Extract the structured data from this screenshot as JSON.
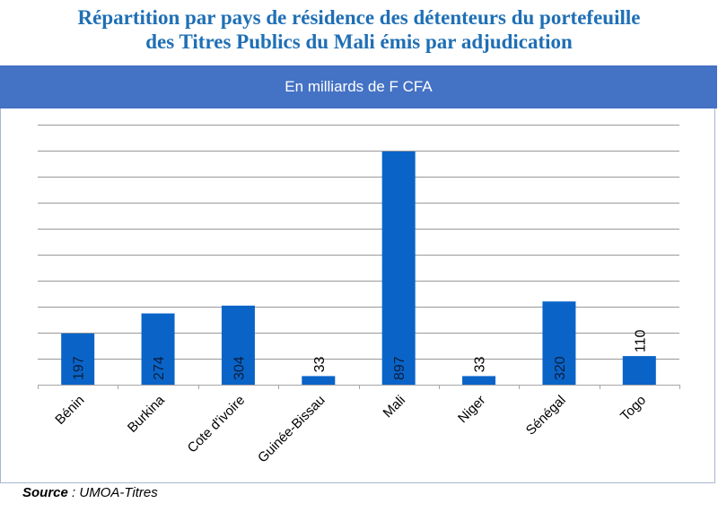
{
  "header": {
    "title_line1": "Répartition par pays de résidence des détenteurs du portefeuille",
    "title_line2": "des Titres Publics du Mali émis par adjudication",
    "band_label": "En milliards de F CFA"
  },
  "footer": {
    "source_label": "Source",
    "source_sep": " : ",
    "source_value": "UMOA-Titres"
  },
  "colors": {
    "title": "#1f6fb5",
    "band": "#4472c4",
    "bar": "#0a64c8",
    "gridline": "#999999"
  },
  "chart_data": {
    "type": "bar",
    "title": "Répartition par pays de résidence des détenteurs du portefeuille des Titres Publics du Mali émis par adjudication",
    "subtitle": "En milliards de F CFA",
    "categories": [
      "Bénin",
      "Burkina",
      "Cote d'ivoire",
      "Guinée-Bissau",
      "Mali",
      "Niger",
      "Sénégal",
      "Togo"
    ],
    "values": [
      197,
      274,
      304,
      33,
      897,
      33,
      320,
      110
    ],
    "data_labels": [
      "197",
      "274",
      "304",
      "33",
      "897",
      "33",
      "320",
      "110"
    ],
    "xlabel": "",
    "ylabel": "",
    "ylim": [
      0,
      1000
    ],
    "ytick_step": 100,
    "y_tick_labels_shown": false,
    "grid": true,
    "legend": "none",
    "source": "Source : UMOA-Titres"
  }
}
